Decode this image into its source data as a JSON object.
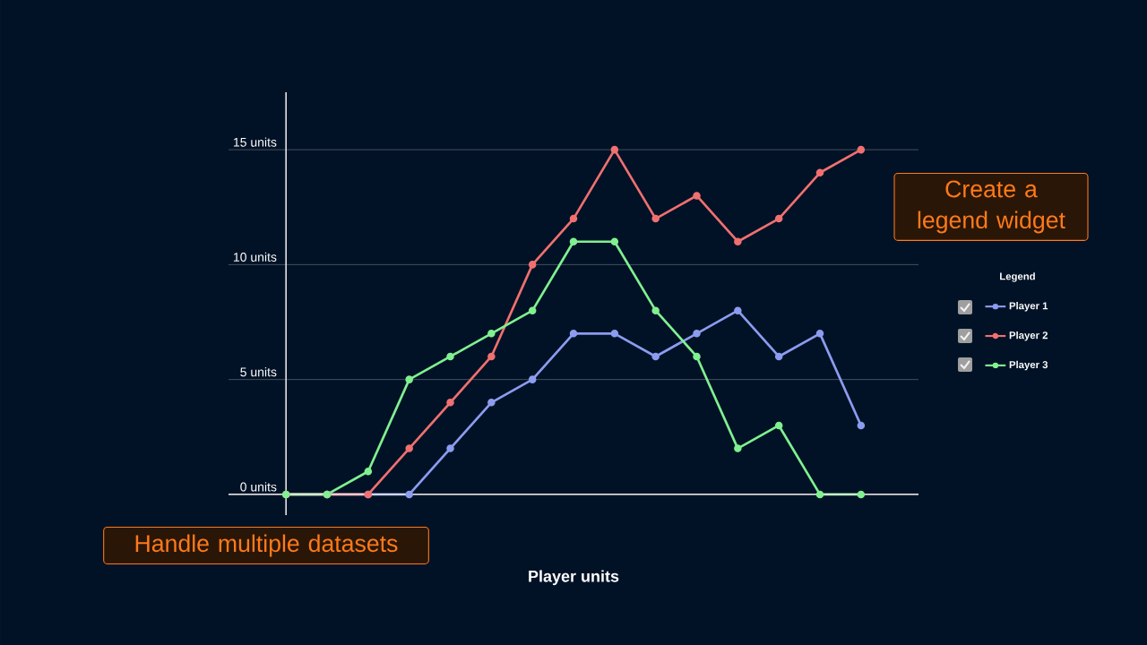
{
  "chart_data": {
    "type": "line",
    "xlabel": "Player units",
    "legend_title": "Legend",
    "legend": "right",
    "marker": "circle",
    "line_style": "solid",
    "grid": "y",
    "categories": [
      null,
      null,
      null,
      null,
      null,
      null,
      null,
      null,
      null,
      null,
      null,
      null,
      null,
      null,
      null
    ],
    "ylim": [
      -0.9,
      17.5
    ],
    "yticks": [
      {
        "value": 0,
        "label": "0 units"
      },
      {
        "value": 5,
        "label": "5 units"
      },
      {
        "value": 10,
        "label": "10 units"
      },
      {
        "value": 15,
        "label": "15 units"
      }
    ],
    "series": [
      {
        "name": "Player 1",
        "color": "#8c9cf0",
        "values": [
          0,
          0,
          0,
          0,
          2,
          4,
          5,
          7,
          7,
          6,
          7,
          8,
          6,
          7,
          3
        ]
      },
      {
        "name": "Player 2",
        "color": "#f07070",
        "values": [
          0,
          0,
          0,
          2,
          4,
          6,
          10,
          12,
          15,
          12,
          13,
          11,
          12,
          14,
          15
        ]
      },
      {
        "name": "Player 3",
        "color": "#80f090",
        "values": [
          0,
          0,
          1,
          5,
          6,
          7,
          8,
          11,
          11,
          8,
          6,
          2,
          3,
          0,
          0
        ]
      }
    ],
    "annotations": [
      "Create a legend widget",
      "Handle multiple datasets"
    ]
  }
}
